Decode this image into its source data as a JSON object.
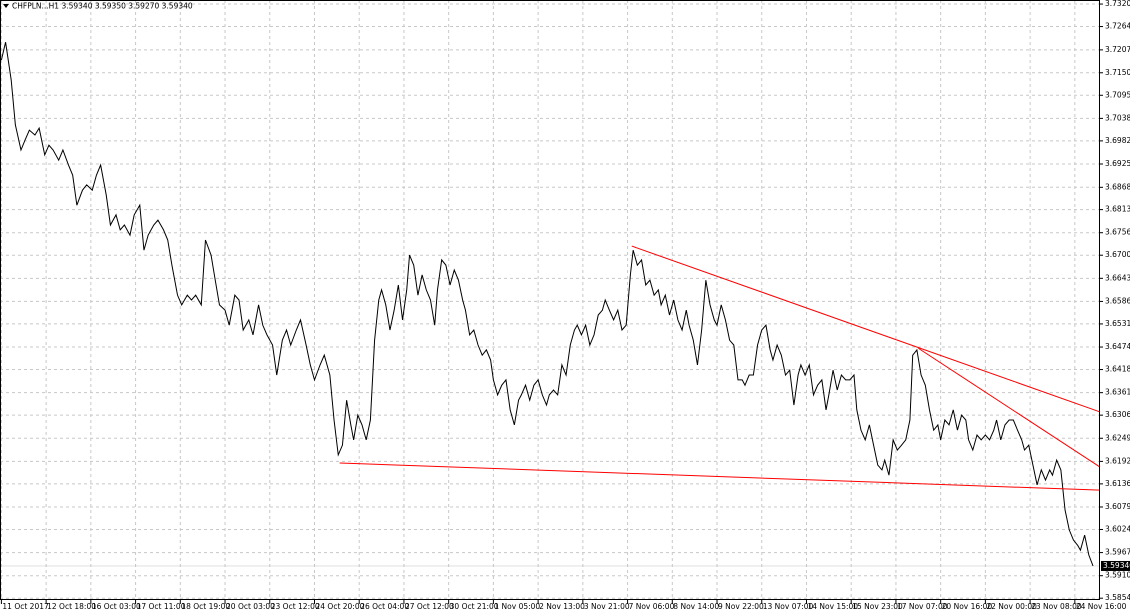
{
  "chart_data": {
    "type": "line",
    "title": "CHFPLN...H1  3.59340 3.59350 3.59270 3.59340",
    "color": "#000000",
    "grid": true,
    "xlim": [
      -1,
      786
    ],
    "ylim": [
      3.5855,
      3.733
    ],
    "xticks": [
      {
        "value": 0,
        "label": "11 Oct 2017"
      },
      {
        "value": 32,
        "label": "12 Oct 18:00"
      },
      {
        "value": 64,
        "label": "16 Oct 03:00"
      },
      {
        "value": 96,
        "label": "17 Oct 11:00"
      },
      {
        "value": 128,
        "label": "18 Oct 19:00"
      },
      {
        "value": 160,
        "label": "20 Oct 03:00"
      },
      {
        "value": 192,
        "label": "23 Oct 12:00"
      },
      {
        "value": 224,
        "label": "24 Oct 20:00"
      },
      {
        "value": 256,
        "label": "26 Oct 04:00"
      },
      {
        "value": 288,
        "label": "27 Oct 12:00"
      },
      {
        "value": 320,
        "label": "30 Oct 21:00"
      },
      {
        "value": 352,
        "label": "1 Nov 05:00"
      },
      {
        "value": 384,
        "label": "2 Nov 13:00"
      },
      {
        "value": 416,
        "label": "3 Nov 21:00"
      },
      {
        "value": 448,
        "label": "7 Nov 06:00"
      },
      {
        "value": 480,
        "label": "8 Nov 14:00"
      },
      {
        "value": 512,
        "label": "9 Nov 22:00"
      },
      {
        "value": 544,
        "label": "13 Nov 07:00"
      },
      {
        "value": 576,
        "label": "14 Nov 15:00"
      },
      {
        "value": 608,
        "label": "15 Nov 23:00"
      },
      {
        "value": 640,
        "label": "17 Nov 07:00"
      },
      {
        "value": 672,
        "label": "20 Nov 16:00"
      },
      {
        "value": 704,
        "label": "22 Nov 00:00"
      },
      {
        "value": 736,
        "label": "23 Nov 08:00"
      },
      {
        "value": 768,
        "label": "24 Nov 16:00"
      }
    ],
    "yticks": [
      {
        "value": 3.732,
        "label": "3.73200"
      },
      {
        "value": 3.72645,
        "label": "3.72645"
      },
      {
        "value": 3.7207,
        "label": "3.72070"
      },
      {
        "value": 3.71505,
        "label": "3.71505"
      },
      {
        "value": 3.7095,
        "label": "3.70950"
      },
      {
        "value": 3.7038,
        "label": "3.70380"
      },
      {
        "value": 3.69825,
        "label": "3.69825"
      },
      {
        "value": 3.69255,
        "label": "3.69255"
      },
      {
        "value": 3.6868,
        "label": "3.68680"
      },
      {
        "value": 3.6813,
        "label": "3.68130"
      },
      {
        "value": 3.6756,
        "label": "3.67560"
      },
      {
        "value": 3.67005,
        "label": "3.67005"
      },
      {
        "value": 3.66435,
        "label": "3.66435"
      },
      {
        "value": 3.65865,
        "label": "3.65865"
      },
      {
        "value": 3.6531,
        "label": "3.65310"
      },
      {
        "value": 3.6474,
        "label": "3.64740"
      },
      {
        "value": 3.64185,
        "label": "3.64185"
      },
      {
        "value": 3.63615,
        "label": "3.63615"
      },
      {
        "value": 3.6306,
        "label": "3.63060"
      },
      {
        "value": 3.6249,
        "label": "3.62490"
      },
      {
        "value": 3.6192,
        "label": "3.61920"
      },
      {
        "value": 3.61365,
        "label": "3.61365"
      },
      {
        "value": 3.60795,
        "label": "3.60795"
      },
      {
        "value": 3.6024,
        "label": "3.60240"
      },
      {
        "value": 3.5967,
        "label": "3.59670"
      },
      {
        "value": 3.591,
        "label": "3.59100"
      },
      {
        "value": 3.58545,
        "label": "3.58545"
      }
    ],
    "last_price": {
      "value": 3.5934,
      "label": "3.59340"
    },
    "x": [
      0,
      3,
      7,
      10,
      14,
      17,
      20,
      24,
      27,
      31,
      34,
      37,
      41,
      44,
      48,
      51,
      54,
      58,
      61,
      65,
      68,
      71,
      75,
      78,
      82,
      85,
      88,
      92,
      95,
      99,
      102,
      105,
      109,
      112,
      116,
      119,
      122,
      126,
      129,
      133,
      136,
      139,
      143,
      146,
      150,
      153,
      156,
      160,
      163,
      167,
      170,
      173,
      177,
      180,
      184,
      187,
      190,
      194,
      197,
      201,
      204,
      207,
      211,
      214,
      218,
      221,
      224,
      228,
      231,
      235,
      238,
      241,
      244,
      247,
      250,
      252,
      255,
      258,
      261,
      264,
      267,
      270,
      272,
      275,
      278,
      281,
      284,
      287,
      290,
      292,
      295,
      298,
      301,
      304,
      307,
      310,
      312,
      315,
      318,
      321,
      324,
      327,
      330,
      332,
      335,
      338,
      341,
      344,
      347,
      350,
      352,
      355,
      358,
      361,
      364,
      367,
      370,
      372,
      375,
      378,
      381,
      384,
      387,
      390,
      392,
      395,
      398,
      401,
      404,
      407,
      410,
      412,
      415,
      418,
      421,
      424,
      427,
      430,
      432,
      435,
      438,
      441,
      444,
      447,
      450,
      452,
      455,
      458,
      461,
      464,
      467,
      470,
      472,
      475,
      478,
      481,
      484,
      487,
      490,
      492,
      495,
      498,
      501,
      504,
      507,
      510,
      512,
      515,
      518,
      521,
      524,
      527,
      530,
      532,
      535,
      538,
      541,
      544,
      547,
      550,
      552,
      555,
      558,
      561,
      564,
      567,
      570,
      572,
      575,
      578,
      581,
      584,
      587,
      590,
      592,
      595,
      598,
      601,
      604,
      607,
      610,
      612,
      615,
      618,
      621,
      624,
      627,
      630,
      632,
      635,
      638,
      641,
      644,
      647,
      650,
      652,
      655,
      658,
      661,
      664,
      667,
      670,
      672,
      675,
      678,
      681,
      684,
      687,
      690,
      692,
      695,
      698,
      701,
      704,
      707,
      710,
      712,
      715,
      718,
      721,
      724,
      727,
      730,
      732,
      735,
      738,
      741,
      744,
      747,
      750,
      752,
      755,
      758,
      761,
      764,
      767,
      770,
      772,
      775,
      778,
      781
    ],
    "values": [
      3.7182,
      3.7226,
      3.7133,
      3.7022,
      3.696,
      3.6985,
      3.7009,
      3.6997,
      3.7014,
      3.6948,
      3.6972,
      3.696,
      3.6935,
      3.696,
      3.6923,
      3.6898,
      3.6824,
      3.6861,
      3.6874,
      3.6861,
      3.6898,
      3.6923,
      3.6849,
      3.6775,
      3.68,
      3.6763,
      3.6775,
      3.675,
      3.68,
      3.6824,
      3.6713,
      3.675,
      3.6775,
      3.6787,
      3.6763,
      3.6738,
      3.6676,
      3.6602,
      3.6578,
      3.6602,
      3.659,
      3.6602,
      3.6578,
      3.6738,
      3.6701,
      3.6639,
      3.6578,
      3.6565,
      3.6528,
      3.6602,
      3.659,
      3.6516,
      3.6541,
      3.6504,
      3.6578,
      3.6528,
      3.6504,
      3.6479,
      3.6405,
      3.6491,
      3.6516,
      3.6479,
      3.6516,
      3.6541,
      3.6479,
      3.643,
      3.6393,
      3.643,
      3.6454,
      3.6405,
      3.6294,
      3.6208,
      3.6232,
      3.6343,
      3.6282,
      3.6245,
      3.6306,
      3.6282,
      3.6245,
      3.6294,
      3.6491,
      3.659,
      3.6615,
      3.6578,
      3.6516,
      3.6565,
      3.6627,
      3.6541,
      3.6615,
      3.6701,
      3.6676,
      3.6602,
      3.6652,
      3.6615,
      3.659,
      3.6528,
      3.6615,
      3.6689,
      3.6676,
      3.6627,
      3.6664,
      3.6639,
      3.659,
      3.6565,
      3.6504,
      3.6516,
      3.6479,
      3.6454,
      3.6467,
      3.6442,
      3.6393,
      3.6356,
      3.638,
      3.6393,
      3.6319,
      3.6282,
      3.6343,
      3.6356,
      3.638,
      3.6343,
      3.638,
      3.6393,
      3.6356,
      3.6331,
      3.6356,
      3.6368,
      3.6356,
      3.643,
      3.6405,
      3.6479,
      3.6516,
      3.6528,
      3.6504,
      3.6528,
      3.6479,
      3.6504,
      3.6553,
      3.6565,
      3.659,
      3.6565,
      3.6541,
      3.6565,
      3.6516,
      3.6528,
      3.6652,
      3.6713,
      3.6676,
      3.6689,
      3.6627,
      3.6639,
      3.6602,
      3.6615,
      3.6578,
      3.6602,
      3.6553,
      3.659,
      3.6541,
      3.6516,
      3.6565,
      3.6528,
      3.6491,
      3.643,
      3.6516,
      3.6639,
      3.6578,
      3.6541,
      3.6528,
      3.6578,
      3.6541,
      3.6491,
      3.6479,
      3.6393,
      3.6393,
      3.638,
      3.6405,
      3.6405,
      3.6479,
      3.6516,
      3.6528,
      3.6467,
      3.6442,
      3.6479,
      3.6454,
      3.6405,
      3.6417,
      3.6331,
      3.6405,
      3.643,
      3.6405,
      3.643,
      3.6356,
      3.638,
      3.6393,
      3.6319,
      3.6356,
      3.6417,
      3.6368,
      3.6405,
      3.6393,
      3.6393,
      3.6405,
      3.6319,
      3.6269,
      3.6245,
      3.6282,
      3.6232,
      3.6183,
      3.6171,
      3.6195,
      3.6158,
      3.6245,
      3.622,
      3.6232,
      3.6245,
      3.6294,
      3.6454,
      3.6467,
      3.6405,
      3.638,
      3.6319,
      3.6269,
      3.6282,
      3.6245,
      3.6294,
      3.6282,
      3.6319,
      3.6269,
      3.6306,
      3.6294,
      3.6245,
      3.622,
      3.6257,
      3.6245,
      3.6257,
      3.6245,
      3.6269,
      3.6294,
      3.6245,
      3.6282,
      3.6294,
      3.6294,
      3.6269,
      3.6245,
      3.622,
      3.6232,
      3.6183,
      3.6134,
      3.6171,
      3.6146,
      3.6171,
      3.6158,
      3.6195,
      3.6171,
      3.6072,
      3.6023,
      3.5998,
      3.5985,
      3.5973,
      3.601,
      3.5961,
      3.5934
    ],
    "trendlines": [
      {
        "color": "#ff0000",
        "x": [
          242,
          786
        ],
        "values": [
          3.6188,
          3.6121
        ]
      },
      {
        "color": "#ff0000",
        "x": [
          451,
          786
        ],
        "values": [
          3.6723,
          3.6314
        ]
      },
      {
        "color": "#ff0000",
        "x": [
          656,
          786
        ],
        "values": [
          3.6471,
          3.6178
        ]
      }
    ]
  }
}
